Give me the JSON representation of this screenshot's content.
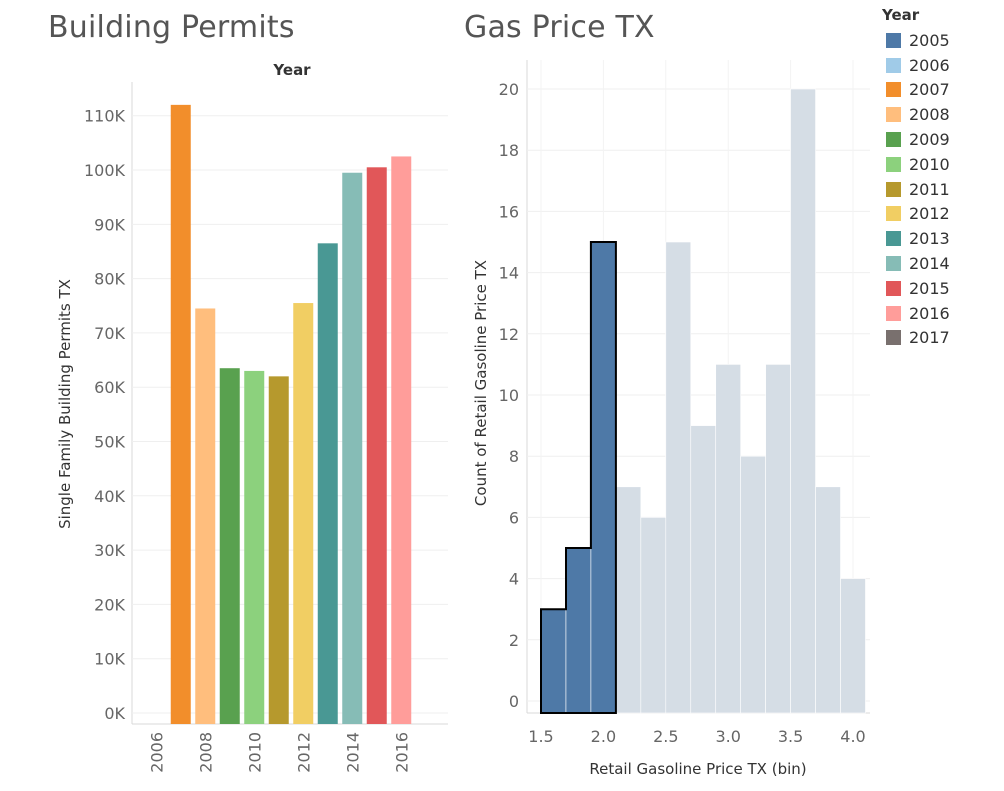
{
  "left_title": "Building Permits",
  "right_title": "Gas Price TX",
  "legend": {
    "title": "Year",
    "items": [
      {
        "label": "2005",
        "color": "#4e79a7"
      },
      {
        "label": "2006",
        "color": "#a0cbe8"
      },
      {
        "label": "2007",
        "color": "#f28e2b"
      },
      {
        "label": "2008",
        "color": "#ffbe7d"
      },
      {
        "label": "2009",
        "color": "#59a14f"
      },
      {
        "label": "2010",
        "color": "#8cd17d"
      },
      {
        "label": "2011",
        "color": "#b6992d"
      },
      {
        "label": "2012",
        "color": "#f1ce63"
      },
      {
        "label": "2013",
        "color": "#499894"
      },
      {
        "label": "2014",
        "color": "#86bcb6"
      },
      {
        "label": "2015",
        "color": "#e15759"
      },
      {
        "label": "2016",
        "color": "#ff9d9a"
      },
      {
        "label": "2017",
        "color": "#79706e"
      }
    ]
  },
  "chart_data": [
    {
      "type": "bar",
      "title": "Building Permits",
      "header": "Year",
      "xlabel": "",
      "ylabel": "Single Family Building Permits TX",
      "categories": [
        "2006",
        "2007",
        "2008",
        "2009",
        "2010",
        "2011",
        "2012",
        "2013",
        "2014",
        "2015",
        "2016"
      ],
      "values": [
        0,
        112000,
        74500,
        63500,
        63000,
        62000,
        75500,
        86500,
        99500,
        100500,
        102500
      ],
      "colors": [
        "#a0cbe8",
        "#f28e2b",
        "#ffbe7d",
        "#59a14f",
        "#8cd17d",
        "#b6992d",
        "#f1ce63",
        "#499894",
        "#86bcb6",
        "#e15759",
        "#ff9d9a"
      ],
      "x_tick_labels": [
        "2006",
        "2008",
        "2010",
        "2012",
        "2014",
        "2016"
      ],
      "y_ticks": [
        0,
        10000,
        20000,
        30000,
        40000,
        50000,
        60000,
        70000,
        80000,
        90000,
        100000,
        110000
      ],
      "y_tick_labels": [
        "0K",
        "10K",
        "20K",
        "30K",
        "40K",
        "50K",
        "60K",
        "70K",
        "80K",
        "90K",
        "100K",
        "110K"
      ],
      "ylim": [
        0,
        114000
      ],
      "grid": true,
      "legend": "right"
    },
    {
      "type": "bar",
      "title": "Gas Price TX",
      "xlabel": "Retail Gasoline Price TX (bin)",
      "ylabel": "Count of Retail Gasoline Price TX",
      "bin_width": 0.2,
      "bins": [
        {
          "start": 1.5,
          "count": 3,
          "highlighted": true
        },
        {
          "start": 1.7,
          "count": 5,
          "highlighted": true
        },
        {
          "start": 1.9,
          "count": 15,
          "highlighted": true
        },
        {
          "start": 2.1,
          "count": 7,
          "highlighted": false
        },
        {
          "start": 2.3,
          "count": 6,
          "highlighted": false
        },
        {
          "start": 2.5,
          "count": 15,
          "highlighted": false
        },
        {
          "start": 2.7,
          "count": 9,
          "highlighted": false
        },
        {
          "start": 2.9,
          "count": 11,
          "highlighted": false
        },
        {
          "start": 3.1,
          "count": 8,
          "highlighted": false
        },
        {
          "start": 3.3,
          "count": 11,
          "highlighted": false
        },
        {
          "start": 3.5,
          "count": 20,
          "highlighted": false
        },
        {
          "start": 3.7,
          "count": 7,
          "highlighted": false
        },
        {
          "start": 3.9,
          "count": 4,
          "highlighted": false
        }
      ],
      "highlight_color": "#4e79a7",
      "dim_color": "#d5dde5",
      "x_ticks": [
        1.5,
        2.0,
        2.5,
        3.0,
        3.5,
        4.0
      ],
      "x_tick_labels": [
        "1.5",
        "2.0",
        "2.5",
        "3.0",
        "3.5",
        "4.0"
      ],
      "y_ticks": [
        0,
        2,
        4,
        6,
        8,
        10,
        12,
        14,
        16,
        18,
        20
      ],
      "y_tick_labels": [
        "0",
        "2",
        "4",
        "6",
        "8",
        "10",
        "12",
        "14",
        "16",
        "18",
        "20"
      ],
      "xlim": [
        1.45,
        4.1
      ],
      "ylim": [
        0,
        20.5
      ],
      "grid": true
    }
  ]
}
